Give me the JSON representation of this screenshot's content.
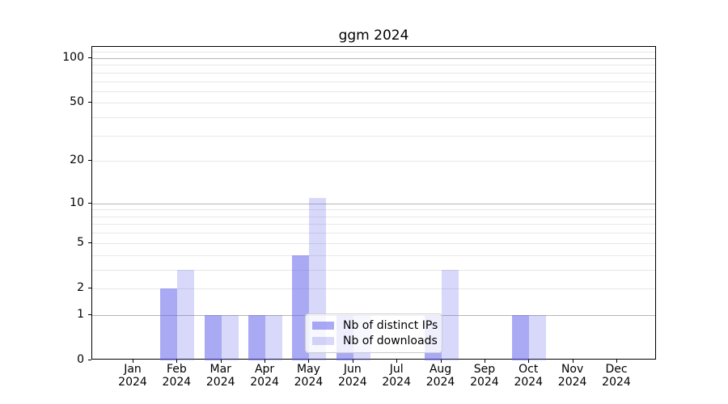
{
  "chart_data": {
    "type": "bar",
    "title": "ggm 2024",
    "xlabel": "",
    "ylabel": "",
    "categories": [
      "Jan",
      "Feb",
      "Mar",
      "Apr",
      "May",
      "Jun",
      "Jul",
      "Aug",
      "Sep",
      "Oct",
      "Nov",
      "Dec"
    ],
    "year_label": "2024",
    "series": [
      {
        "name": "Nb of distinct IPs",
        "color": "rgba(100,100,235,0.55)",
        "values": [
          0,
          2,
          1,
          1,
          4,
          1,
          0,
          1,
          0,
          1,
          0,
          0
        ]
      },
      {
        "name": "Nb of downloads",
        "color": "rgba(100,100,235,0.25)",
        "values": [
          0,
          3,
          1,
          1,
          11,
          1,
          0,
          3,
          0,
          1,
          0,
          0
        ]
      }
    ],
    "yscale": "log1p",
    "ylim": [
      0,
      119
    ],
    "yticks": [
      0,
      1,
      2,
      5,
      10,
      20,
      50,
      100
    ],
    "major_gridlines": [
      1,
      10,
      100
    ],
    "minor_gridlines": [
      2,
      3,
      4,
      5,
      6,
      7,
      8,
      9,
      20,
      30,
      40,
      50,
      60,
      70,
      80,
      90,
      110
    ],
    "grid": true,
    "legend_position": "lower-center"
  },
  "colors": {
    "spine": "#000000",
    "major_grid": "#b5b5b5",
    "minor_grid": "#e7e7e7",
    "text": "#000000",
    "legend_border": "#cccccc"
  }
}
